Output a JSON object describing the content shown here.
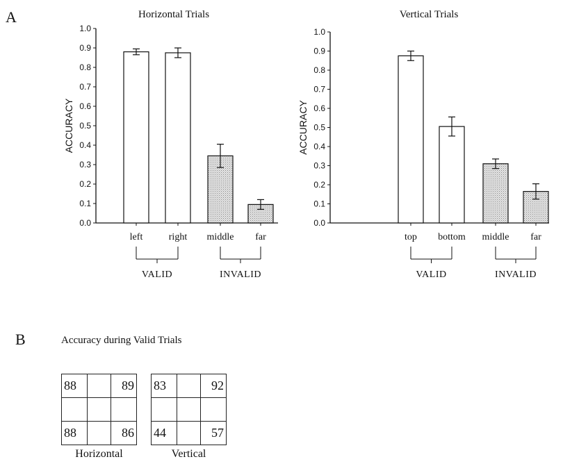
{
  "panel_a_label": "A",
  "panel_b_label": "B",
  "chart_data": [
    {
      "type": "bar",
      "title": "Horizontal Trials",
      "ylabel": "ACCURACY",
      "ylim": [
        0,
        1.0
      ],
      "yticks": [
        "0.0",
        "0.1",
        "0.2",
        "0.3",
        "0.4",
        "0.5",
        "0.6",
        "0.7",
        "0.8",
        "0.9",
        "1.0"
      ],
      "categories": [
        "left",
        "right",
        "middle",
        "far"
      ],
      "values": [
        0.88,
        0.875,
        0.345,
        0.095
      ],
      "errors": [
        0.015,
        0.025,
        0.06,
        0.025
      ],
      "fills": [
        "#ffffff",
        "#ffffff",
        "#d6d6d6",
        "#d6d6d6"
      ],
      "groups": [
        {
          "label": "VALID",
          "categories": [
            "left",
            "right"
          ]
        },
        {
          "label": "INVALID",
          "categories": [
            "middle",
            "far"
          ]
        }
      ]
    },
    {
      "type": "bar",
      "title": "Vertical Trials",
      "ylabel": "ACCURACY",
      "ylim": [
        0,
        1.0
      ],
      "yticks": [
        "0.0",
        "0.1",
        "0.2",
        "0.3",
        "0.4",
        "0.5",
        "0.6",
        "0.7",
        "0.8",
        "0.9",
        "1.0"
      ],
      "categories": [
        "top",
        "bottom",
        "middle",
        "far"
      ],
      "values": [
        0.875,
        0.505,
        0.31,
        0.165
      ],
      "errors": [
        0.025,
        0.05,
        0.025,
        0.04
      ],
      "fills": [
        "#ffffff",
        "#ffffff",
        "#d6d6d6",
        "#d6d6d6"
      ],
      "groups": [
        {
          "label": "VALID",
          "categories": [
            "top",
            "bottom"
          ]
        },
        {
          "label": "INVALID",
          "categories": [
            "middle",
            "far"
          ]
        }
      ]
    }
  ],
  "valid_trials": {
    "title": "Accuracy during Valid Trials",
    "grids": [
      {
        "caption": "Horizontal",
        "top_left": "88",
        "top_right": "89",
        "bottom_left": "88",
        "bottom_right": "86"
      },
      {
        "caption": "Vertical",
        "top_left": "83",
        "top_right": "92",
        "bottom_left": "44",
        "bottom_right": "57"
      }
    ]
  }
}
